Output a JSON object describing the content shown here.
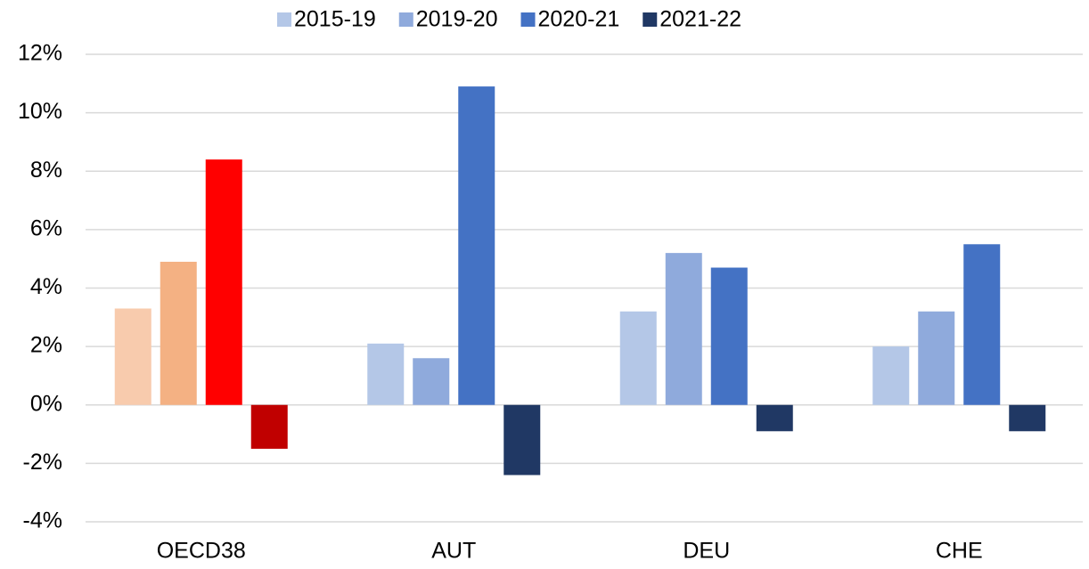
{
  "chart_data": {
    "type": "bar",
    "categories": [
      "OECD38",
      "AUT",
      "DEU",
      "CHE"
    ],
    "series": [
      {
        "name": "2015-19",
        "color": "#b4c7e7",
        "point_colors": [
          "#f8cbad",
          "#b4c7e7",
          "#b4c7e7",
          "#b4c7e7"
        ],
        "values": [
          3.3,
          2.1,
          3.2,
          2.0
        ]
      },
      {
        "name": "2019-20",
        "color": "#8faadc",
        "point_colors": [
          "#f4b183",
          "#8faadc",
          "#8faadc",
          "#8faadc"
        ],
        "values": [
          4.9,
          1.6,
          5.2,
          3.2
        ]
      },
      {
        "name": "2020-21",
        "color": "#4472c4",
        "point_colors": [
          "#ff0000",
          "#4472c4",
          "#4472c4",
          "#4472c4"
        ],
        "values": [
          8.4,
          10.9,
          4.7,
          5.5
        ]
      },
      {
        "name": "2021-22",
        "color": "#203864",
        "point_colors": [
          "#c00000",
          "#203864",
          "#203864",
          "#203864"
        ],
        "values": [
          -1.5,
          -2.4,
          -0.9,
          -0.9
        ]
      }
    ],
    "ylim": [
      -4,
      12
    ],
    "yticks": [
      {
        "value": -4,
        "label": "-4%"
      },
      {
        "value": -2,
        "label": "-2%"
      },
      {
        "value": 0,
        "label": "0%"
      },
      {
        "value": 2,
        "label": "2%"
      },
      {
        "value": 4,
        "label": "4%"
      },
      {
        "value": 6,
        "label": "6%"
      },
      {
        "value": 8,
        "label": "8%"
      },
      {
        "value": 10,
        "label": "10%"
      },
      {
        "value": 12,
        "label": "12%"
      }
    ],
    "grid": true,
    "legend": "top"
  }
}
